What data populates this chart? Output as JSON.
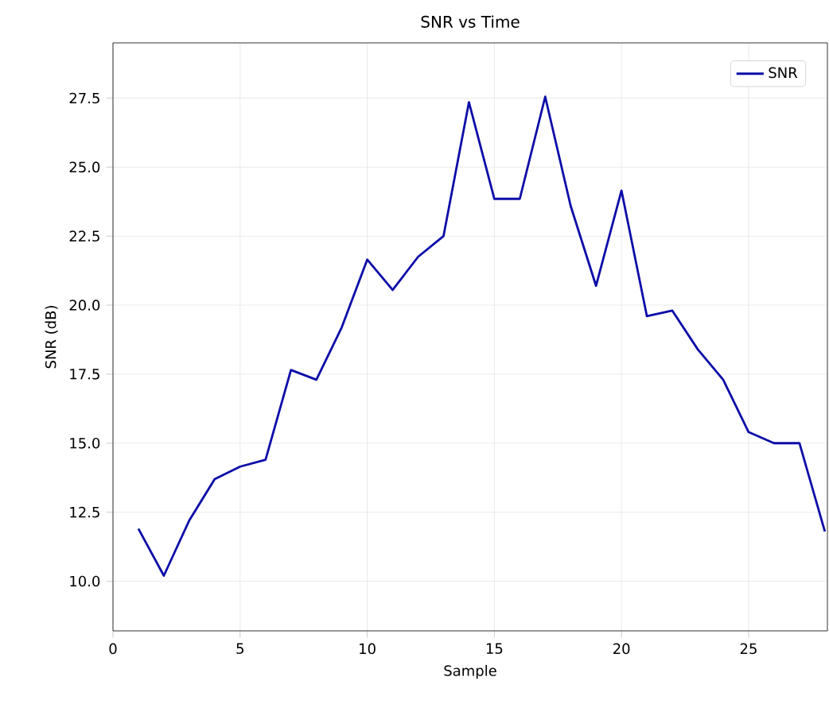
{
  "chart_data": {
    "type": "line",
    "title": "SNR vs Time",
    "xlabel": "Sample",
    "ylabel": "SNR (dB)",
    "x": [
      1,
      2,
      3,
      4,
      5,
      6,
      7,
      8,
      9,
      10,
      11,
      12,
      13,
      14,
      15,
      16,
      17,
      18,
      19,
      20,
      21,
      22,
      23,
      24,
      25,
      26,
      27,
      28
    ],
    "series": [
      {
        "name": "SNR",
        "color": "#0c0ca8",
        "values": [
          11.9,
          10.2,
          12.2,
          13.7,
          14.15,
          14.4,
          17.65,
          17.3,
          19.2,
          21.65,
          20.55,
          21.75,
          22.5,
          27.35,
          23.85,
          23.85,
          27.55,
          23.6,
          20.7,
          24.15,
          19.6,
          19.8,
          18.4,
          17.3,
          15.4,
          15.0,
          15.0,
          11.8
        ]
      }
    ],
    "xlim": [
      0,
      28.1
    ],
    "ylim": [
      8.2,
      29.5
    ],
    "xticks": [
      0,
      5,
      10,
      15,
      20,
      25
    ],
    "yticks": [
      {
        "value": 10,
        "label": "10.0"
      },
      12.5,
      {
        "value": 15,
        "label": "15.0"
      },
      17.5,
      {
        "value": 20,
        "label": "20.0"
      },
      22.5,
      {
        "value": 25,
        "label": "25.0"
      },
      27.5
    ],
    "grid": true,
    "legend": "top right",
    "marker": "none",
    "line_style": "solid"
  }
}
